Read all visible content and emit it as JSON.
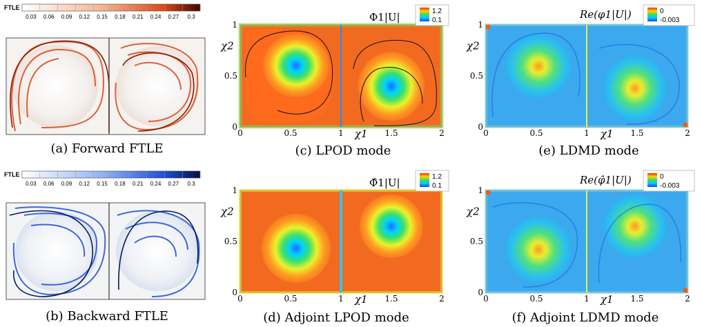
{
  "ftle_colorbar": {
    "title": "FTLE",
    "ticks": [
      "0.03",
      "0.06",
      "0.09",
      "0.12",
      "0.15",
      "0.18",
      "0.21",
      "0.24",
      "0.27",
      "0.3"
    ]
  },
  "panels": {
    "a": {
      "caption": "(a) Forward FTLE",
      "accent": "#d9481a"
    },
    "b": {
      "caption": "(b) Backward FTLE",
      "accent": "#1f4fd8"
    },
    "c": {
      "caption": "(c) LPOD mode",
      "legend_label": "Φ1|U|",
      "legend_max": "1.2",
      "legend_min": "0.1"
    },
    "d": {
      "caption": "(d) Adjoint LPOD mode",
      "legend_label": "Φ̂1|U|",
      "legend_max": "1.2",
      "legend_min": "0.1"
    },
    "e": {
      "caption": "(e) LDMD mode",
      "legend_label": "Re(φ1|U|)",
      "legend_max": "0",
      "legend_min": "-0.003"
    },
    "f": {
      "caption": "(f) Adjoint LDMD mode",
      "legend_label": "Re(φ̂1|U|)",
      "legend_max": "0",
      "legend_min": "-0.003"
    }
  },
  "axes": {
    "xlabel": "χ1",
    "ylabel": "χ2",
    "xticks": [
      "0",
      "0.5",
      "1",
      "1.5",
      "2"
    ],
    "yticks": [
      "0",
      "0.5",
      "1"
    ]
  }
}
